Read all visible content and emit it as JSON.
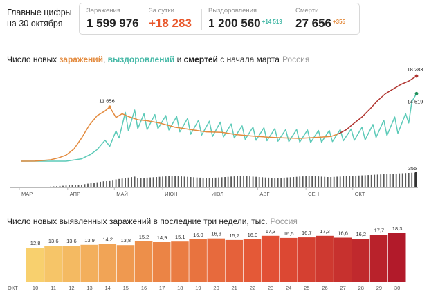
{
  "header": {
    "title_line1": "Главные цифры",
    "title_line2": "на 30 октября"
  },
  "stats": {
    "infections": {
      "label": "Заражения",
      "value": "1 599 976"
    },
    "daily": {
      "label": "За сутки",
      "value": "+18 283"
    },
    "recoveries": {
      "label": "Выздоровления",
      "value": "1 200 560",
      "delta": "+14 519"
    },
    "deaths": {
      "label": "Смерти",
      "value": "27 656",
      "delta": "+355"
    }
  },
  "colors": {
    "infections": "#e38a3d",
    "recoveries": "#5ccab8",
    "infections_late": "#b0332e",
    "deaths_bars": "#5a5a5a",
    "daily_up": "#e8562a"
  },
  "chart1_title": {
    "prefix": "Число новых ",
    "infections": "заражений",
    "comma": ", ",
    "recoveries": "выздоровлений",
    "and": " и ",
    "deaths": "смертей",
    "suffix": " с начала марта",
    "region": "Россия"
  },
  "chart2_title": {
    "text": "Число новых выявленных заражений в последние три недели, тыс.",
    "region": "Россия"
  },
  "chart_data": [
    {
      "type": "line",
      "x_ticks": [
        "МАР",
        "АПР",
        "МАЙ",
        "ИЮН",
        "ИЮЛ",
        "АВГ",
        "СЕН",
        "ОКТ"
      ],
      "series": [
        {
          "name": "заражений",
          "color": "#e38a3d",
          "points": [
            [
              1,
              0
            ],
            [
              10,
              20
            ],
            [
              20,
              300
            ],
            [
              25,
              700
            ],
            [
              30,
              1300
            ],
            [
              35,
              2600
            ],
            [
              40,
              5000
            ],
            [
              45,
              7800
            ],
            [
              50,
              9800
            ],
            [
              55,
              10800
            ],
            [
              58,
              11656
            ],
            [
              62,
              9400
            ],
            [
              66,
              10200
            ],
            [
              70,
              9600
            ],
            [
              76,
              8900
            ],
            [
              82,
              8700
            ],
            [
              90,
              8200
            ],
            [
              100,
              7300
            ],
            [
              110,
              6800
            ],
            [
              120,
              6300
            ],
            [
              130,
              6200
            ],
            [
              140,
              5700
            ],
            [
              150,
              5400
            ],
            [
              160,
              5150
            ],
            [
              170,
              5000
            ],
            [
              180,
              4900
            ],
            [
              190,
              5100
            ],
            [
              200,
              5300
            ],
            [
              205,
              5900
            ],
            [
              210,
              6800
            ],
            [
              215,
              8200
            ],
            [
              220,
              9500
            ],
            [
              225,
              11200
            ],
            [
              230,
              13000
            ],
            [
              235,
              14500
            ],
            [
              240,
              15500
            ],
            [
              245,
              16500
            ],
            [
              250,
              17200
            ],
            [
              255,
              18283
            ]
          ]
        },
        {
          "name": "выздоровлений",
          "color": "#5ccab8",
          "points": [
            [
              1,
              0
            ],
            [
              30,
              0
            ],
            [
              40,
              500
            ],
            [
              46,
              1500
            ],
            [
              50,
              2500
            ],
            [
              55,
              4500
            ],
            [
              58,
              3200
            ],
            [
              62,
              6500
            ],
            [
              64,
              5000
            ],
            [
              68,
              10500
            ],
            [
              70,
              6500
            ],
            [
              74,
              11000
            ],
            [
              76,
              7000
            ],
            [
              80,
              10200
            ],
            [
              82,
              6800
            ],
            [
              87,
              10000
            ],
            [
              89,
              7000
            ],
            [
              94,
              9800
            ],
            [
              96,
              6700
            ],
            [
              101,
              9600
            ],
            [
              103,
              6300
            ],
            [
              108,
              9200
            ],
            [
              110,
              5800
            ],
            [
              115,
              8800
            ],
            [
              117,
              5600
            ],
            [
              122,
              8600
            ],
            [
              124,
              5300
            ],
            [
              129,
              8400
            ],
            [
              131,
              5200
            ],
            [
              136,
              8000
            ],
            [
              138,
              5000
            ],
            [
              143,
              7600
            ],
            [
              145,
              4700
            ],
            [
              150,
              7300
            ],
            [
              152,
              4500
            ],
            [
              157,
              7200
            ],
            [
              159,
              4400
            ],
            [
              164,
              7000
            ],
            [
              166,
              4300
            ],
            [
              171,
              6800
            ],
            [
              173,
              4200
            ],
            [
              178,
              6800
            ],
            [
              180,
              4100
            ],
            [
              185,
              6700
            ],
            [
              187,
              4000
            ],
            [
              192,
              6600
            ],
            [
              194,
              4100
            ],
            [
              199,
              6600
            ],
            [
              201,
              4200
            ],
            [
              206,
              6800
            ],
            [
              208,
              4400
            ],
            [
              213,
              6900
            ],
            [
              215,
              4500
            ],
            [
              220,
              7300
            ],
            [
              222,
              4600
            ],
            [
              227,
              7900
            ],
            [
              229,
              5100
            ],
            [
              234,
              8800
            ],
            [
              236,
              5500
            ],
            [
              241,
              9500
            ],
            [
              243,
              6000
            ],
            [
              248,
              10200
            ],
            [
              250,
              8200
            ],
            [
              252,
              12800
            ],
            [
              255,
              14519
            ]
          ]
        }
      ],
      "deaths_bars_last": 355,
      "annotations": [
        {
          "label": "11 656",
          "series": "заражений"
        },
        {
          "label": "18 283",
          "series": "заражений"
        },
        {
          "label": "14 519",
          "series": "выздоровлений"
        },
        {
          "label": "355",
          "series": "смертей"
        }
      ]
    },
    {
      "type": "bar",
      "title": "Число новых выявленных заражений в последние три недели, тыс.",
      "x_prefix": "ОКТ",
      "categories": [
        "10",
        "11",
        "12",
        "13",
        "14",
        "15",
        "16",
        "17",
        "18",
        "19",
        "20",
        "21",
        "22",
        "23",
        "24",
        "25",
        "26",
        "27",
        "28",
        "29",
        "30"
      ],
      "values": [
        12.8,
        13.6,
        13.6,
        13.9,
        14.2,
        13.8,
        15.2,
        14.9,
        15.1,
        16.0,
        16.3,
        15.7,
        16.0,
        17.3,
        16.5,
        16.7,
        17.3,
        16.6,
        16.2,
        17.7,
        18.3
      ],
      "value_labels": [
        "12,8",
        "13,6",
        "13,6",
        "13,9",
        "14,2",
        "13,8",
        "15,2",
        "14,9",
        "15,1",
        "16,0",
        "16,3",
        "15,7",
        "16,0",
        "17,3",
        "16,5",
        "16,7",
        "17,3",
        "16,6",
        "16,2",
        "17,7",
        "18,3"
      ],
      "weekend": [
        true,
        true,
        false,
        false,
        false,
        false,
        false,
        true,
        true,
        false,
        false,
        false,
        false,
        false,
        true,
        true,
        false,
        false,
        false,
        false,
        false
      ]
    }
  ]
}
